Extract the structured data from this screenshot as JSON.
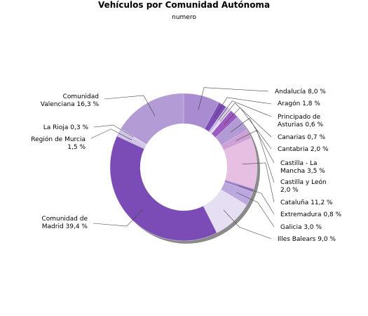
{
  "chart_data": {
    "type": "pie",
    "style": "donut",
    "title": "Vehículos por Comunidad Autónoma",
    "subtitle": "numero",
    "legend": "none",
    "slices": [
      {
        "label": [
          "Andalucía 8,0 %"
        ],
        "value": 8.0,
        "color": "#a88bd0"
      },
      {
        "label": [
          "Aragón 1,8 %"
        ],
        "value": 1.8,
        "color": "#7b4cb5"
      },
      {
        "label": [
          "Principado de",
          "Asturias 0,6 %"
        ],
        "value": 0.6,
        "color": "#c8b5e6"
      },
      {
        "label": [
          "Canarias 0,7 %"
        ],
        "value": 0.7,
        "color": "#e5dbf3"
      },
      {
        "label": [
          "Cantabria 2,0 %"
        ],
        "value": 2.0,
        "color": "#9c5bc0"
      },
      {
        "label": [
          "Castilla - La",
          "Mancha 3,5 %"
        ],
        "value": 3.5,
        "color": "#b29bd5"
      },
      {
        "label": [
          "Castilla y León",
          "2,0 %"
        ],
        "value": 2.0,
        "color": "#cfa0d8"
      },
      {
        "label": [
          "Cataluña 11,2 %"
        ],
        "value": 11.2,
        "color": "#e6bfe3"
      },
      {
        "label": [
          "Extremadura 0,8 %"
        ],
        "value": 0.8,
        "color": "#9d80c8"
      },
      {
        "label": [
          "Galicia 3,0 %"
        ],
        "value": 3.0,
        "color": "#bba8de"
      },
      {
        "label": [
          "Illes Balears 9,0 %"
        ],
        "value": 9.0,
        "color": "#e6dff3"
      },
      {
        "label": [
          "Comunidad de",
          "Madrid 39,4 %"
        ],
        "value": 39.4,
        "color": "#7b4cb5"
      },
      {
        "label": [
          "Región de Murcia",
          "1,5 %"
        ],
        "value": 1.5,
        "color": "#d2c4e8"
      },
      {
        "label": [
          "La Rioja 0,3 %"
        ],
        "value": 0.3,
        "color": "#ece6f6"
      },
      {
        "label": [
          "Comunidad",
          "Valenciana 16,3 %"
        ],
        "value": 16.3,
        "color": "#b39bd6"
      }
    ]
  }
}
